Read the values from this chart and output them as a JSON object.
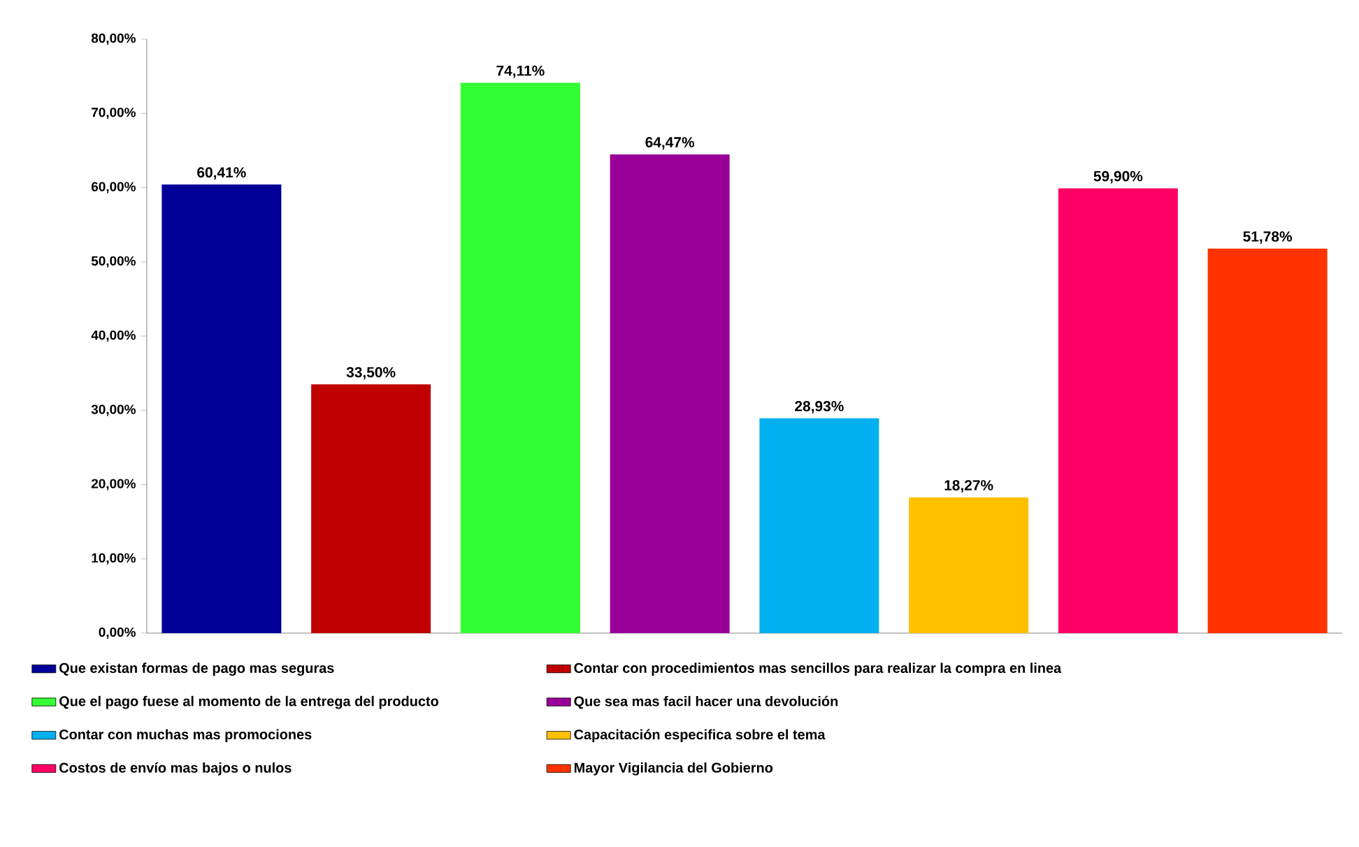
{
  "chart_data": {
    "type": "bar",
    "categories": [
      null,
      null,
      null,
      null,
      null,
      null,
      null,
      null
    ],
    "series": [
      {
        "name": "Que existan formas de pago mas seguras",
        "color": "#000099",
        "values": [
          60.41,
          null,
          null,
          null,
          null,
          null,
          null,
          null
        ],
        "value_labels": [
          "60,41%",
          null,
          null,
          null,
          null,
          null,
          null,
          null
        ]
      },
      {
        "name": "Contar con procedimientos mas sencillos para realizar la compra en linea",
        "color": "#c00000",
        "values": [
          null,
          33.5,
          null,
          null,
          null,
          null,
          null,
          null
        ],
        "value_labels": [
          null,
          "33,50%",
          null,
          null,
          null,
          null,
          null,
          null
        ]
      },
      {
        "name": "Que el pago fuese al momento de la entrega del producto",
        "color": "#33ff33",
        "values": [
          null,
          null,
          74.11,
          null,
          null,
          null,
          null,
          null
        ],
        "value_labels": [
          null,
          null,
          "74,11%",
          null,
          null,
          null,
          null,
          null
        ]
      },
      {
        "name": "Que sea mas facil hacer una devolución",
        "color": "#990099",
        "values": [
          null,
          null,
          null,
          64.47,
          null,
          null,
          null,
          null
        ],
        "value_labels": [
          null,
          null,
          null,
          "64,47%",
          null,
          null,
          null,
          null
        ]
      },
      {
        "name": "Contar con muchas mas promociones",
        "color": "#00b0f0",
        "values": [
          null,
          null,
          null,
          null,
          28.93,
          null,
          null,
          null
        ],
        "value_labels": [
          null,
          null,
          null,
          null,
          "28,93%",
          null,
          null,
          null
        ]
      },
      {
        "name": "Capacitación especifica sobre el tema",
        "color": "#ffc000",
        "values": [
          null,
          null,
          null,
          null,
          null,
          18.27,
          null,
          null
        ],
        "value_labels": [
          null,
          null,
          null,
          null,
          null,
          "18,27%",
          null,
          null
        ]
      },
      {
        "name": "Costos de envío mas bajos o nulos",
        "color": "#ff0066",
        "values": [
          null,
          null,
          null,
          null,
          null,
          null,
          59.9,
          null
        ],
        "value_labels": [
          null,
          null,
          null,
          null,
          null,
          null,
          "59,90%",
          null
        ]
      },
      {
        "name": "Mayor Vigilancia del Gobierno",
        "color": "#ff3300",
        "values": [
          null,
          null,
          null,
          null,
          null,
          null,
          null,
          51.78
        ],
        "value_labels": [
          null,
          null,
          null,
          null,
          null,
          null,
          null,
          "51,78%"
        ]
      }
    ],
    "ylim": [
      0,
      80
    ],
    "yticks": [
      {
        "value": 0,
        "label": "0,00%"
      },
      {
        "value": 10,
        "label": "10,00%"
      },
      {
        "value": 20,
        "label": "20,00%"
      },
      {
        "value": 30,
        "label": "30,00%"
      },
      {
        "value": 40,
        "label": "40,00%"
      },
      {
        "value": 50,
        "label": "50,00%"
      },
      {
        "value": 60,
        "label": "60,00%"
      },
      {
        "value": 70,
        "label": "70,00%"
      },
      {
        "value": 80,
        "label": "80,00%"
      }
    ],
    "tick_labels": "y",
    "legend": "bottom",
    "grid": false
  }
}
